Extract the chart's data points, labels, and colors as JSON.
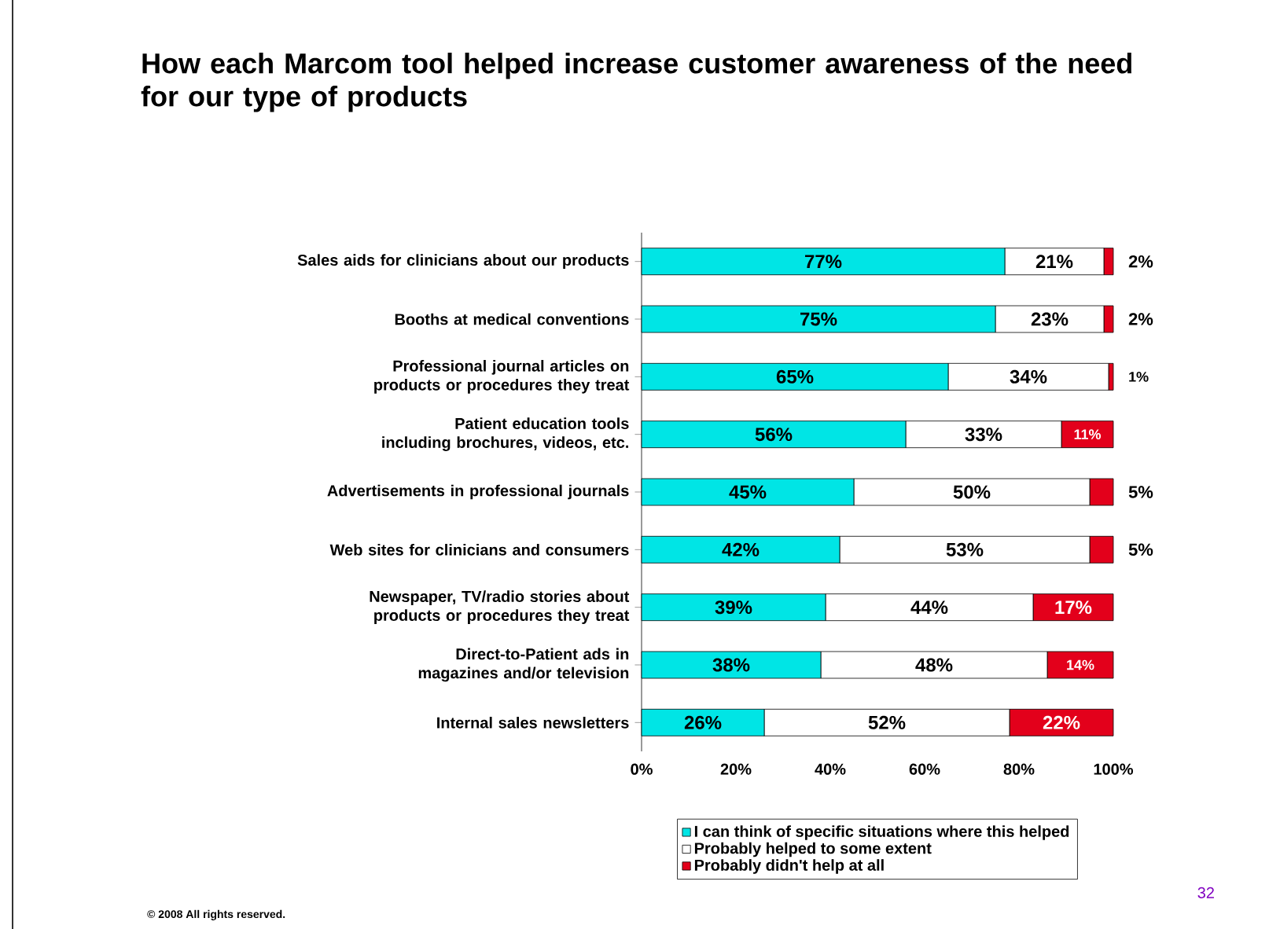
{
  "chart_data": {
    "type": "bar",
    "orientation": "horizontal",
    "stacked": true,
    "title": "How each Marcom tool helped increase customer awareness of the need for our type of products",
    "categories": [
      "Sales aids for clinicians about our products",
      "Booths at medical conventions",
      "Professional journal articles on products or procedures they treat",
      "Patient education tools including brochures, videos, etc.",
      "Advertisements in professional journals",
      "Web sites for clinicians and consumers",
      "Newspaper, TV/radio stories about products or procedures they treat",
      "Direct-to-Patient ads in magazines and/or television",
      "Internal sales newsletters"
    ],
    "series": [
      {
        "name": "I can think of specific situations where this helped",
        "color": "#00e5e5",
        "values": [
          77,
          75,
          65,
          56,
          45,
          42,
          39,
          38,
          26
        ],
        "value_labels": [
          "77%",
          "75%",
          "65%",
          "56%",
          "45%",
          "42%",
          "39%",
          "38%",
          "26%"
        ]
      },
      {
        "name": "Probably helped to some extent",
        "color": "#ffffff",
        "values": [
          21,
          23,
          34,
          33,
          50,
          53,
          44,
          48,
          52
        ],
        "value_labels": [
          "21%",
          "23%",
          "34%",
          "33%",
          "50%",
          "53%",
          "44%",
          "48%",
          "52%"
        ]
      },
      {
        "name": "Probably didn't help at all",
        "color": "#e3001b",
        "values": [
          2,
          2,
          1,
          11,
          5,
          5,
          17,
          14,
          22
        ],
        "value_labels": [
          "2%",
          "2%",
          "1%",
          "11%",
          "5%",
          "5%",
          "17%",
          "14%",
          "22%"
        ]
      }
    ],
    "xlim": [
      0,
      100
    ],
    "xticks": [
      {
        "value": 0,
        "label": "0%"
      },
      {
        "value": 20,
        "label": "20%"
      },
      {
        "value": 40,
        "label": "40%"
      },
      {
        "value": 60,
        "label": "60%"
      },
      {
        "value": 80,
        "label": "80%"
      },
      {
        "value": 100,
        "label": "100%"
      }
    ],
    "legend": "bottom",
    "grid": false,
    "annotations": [
      "© 2008 All rights reserved.",
      "32"
    ]
  }
}
